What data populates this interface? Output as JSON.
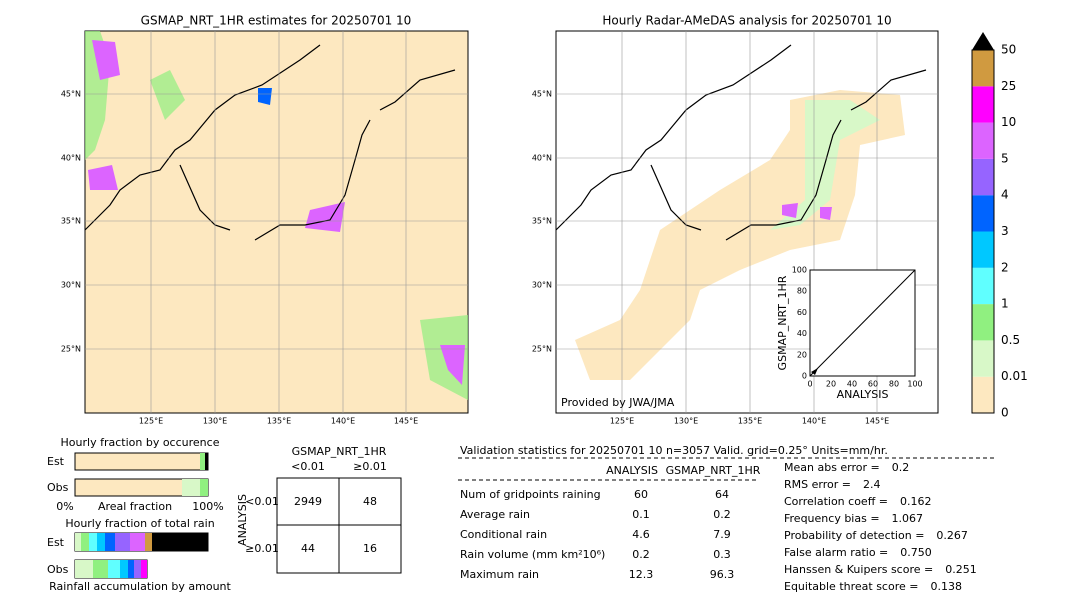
{
  "left_map": {
    "title": "GSMAP_NRT_1HR estimates for 20250701 10"
  },
  "right_map": {
    "title": "Hourly Radar-AMeDAS analysis for 20250701 10",
    "credit": "Provided by JWA/JMA"
  },
  "lat_labels": [
    "45°N",
    "40°N",
    "35°N",
    "30°N",
    "25°N"
  ],
  "lon_labels": [
    "125°E",
    "130°E",
    "135°E",
    "140°E",
    "145°E"
  ],
  "inset": {
    "ylabel": "GSMAP_NRT_1HR",
    "xlabel": "ANALYSIS",
    "xlim": [
      0,
      100
    ],
    "ylim": [
      0,
      100
    ],
    "xticks": [
      0,
      20,
      40,
      60,
      80,
      100
    ],
    "yticks": [
      0,
      20,
      40,
      60,
      80,
      100
    ]
  },
  "colorbar": {
    "levels": [
      0,
      0.01,
      0.5,
      1,
      2,
      3,
      4,
      5,
      10,
      25,
      50
    ],
    "colors": [
      "#fde8c0",
      "#d8f8c8",
      "#90f080",
      "#60ffff",
      "#00c8ff",
      "#0064ff",
      "#9664ff",
      "#dc64ff",
      "#ff00ff",
      "#d09a40"
    ],
    "extend_color": "#000000"
  },
  "fractions": {
    "occurrence_title": "Hourly fraction by occurence",
    "est": "Est",
    "obs": "Obs",
    "axis_left": "0%",
    "axis_mid": "Areal fraction",
    "axis_right": "100%",
    "rain_title": "Hourly fraction of total rain",
    "rain_est": "Est",
    "rain_obs": "Obs",
    "rain_caption": "Rainfall accumulation by amount"
  },
  "contingency": {
    "title": "GSMAP_NRT_1HR",
    "col_labels": [
      "<0.01",
      "≥0.01"
    ],
    "row_title": "ANALYSIS",
    "row_labels": [
      "<0.01",
      "≥0.01"
    ],
    "cells": [
      [
        2949,
        48
      ],
      [
        44,
        16
      ]
    ]
  },
  "validation": {
    "header": "Validation statistics for 20250701 10  n=3057 Valid. grid=0.25° Units=mm/hr.",
    "columns": [
      "ANALYSIS",
      "GSMAP_NRT_1HR"
    ],
    "rows": [
      {
        "label": "Num of gridpoints raining",
        "values": [
          60,
          64
        ]
      },
      {
        "label": "Average rain",
        "values": [
          0.1,
          0.2
        ]
      },
      {
        "label": "Conditional rain",
        "values": [
          4.6,
          7.9
        ]
      },
      {
        "label": "Rain volume (mm km²10⁶)",
        "values": [
          0.2,
          0.3
        ]
      },
      {
        "label": "Maximum rain",
        "values": [
          12.3,
          96.3
        ]
      }
    ],
    "scores": [
      {
        "label": "Mean abs error =",
        "value": 0.2
      },
      {
        "label": "RMS error =",
        "value": 2.4
      },
      {
        "label": "Correlation coeff =",
        "value": 0.162
      },
      {
        "label": "Frequency bias =",
        "value": 1.067
      },
      {
        "label": "Probability of detection =",
        "value": 0.267
      },
      {
        "label": "False alarm ratio =",
        "value": "0.750"
      },
      {
        "label": "Hanssen & Kuipers score =",
        "value": 0.251
      },
      {
        "label": "Equitable threat score =",
        "value": 0.138
      }
    ]
  }
}
